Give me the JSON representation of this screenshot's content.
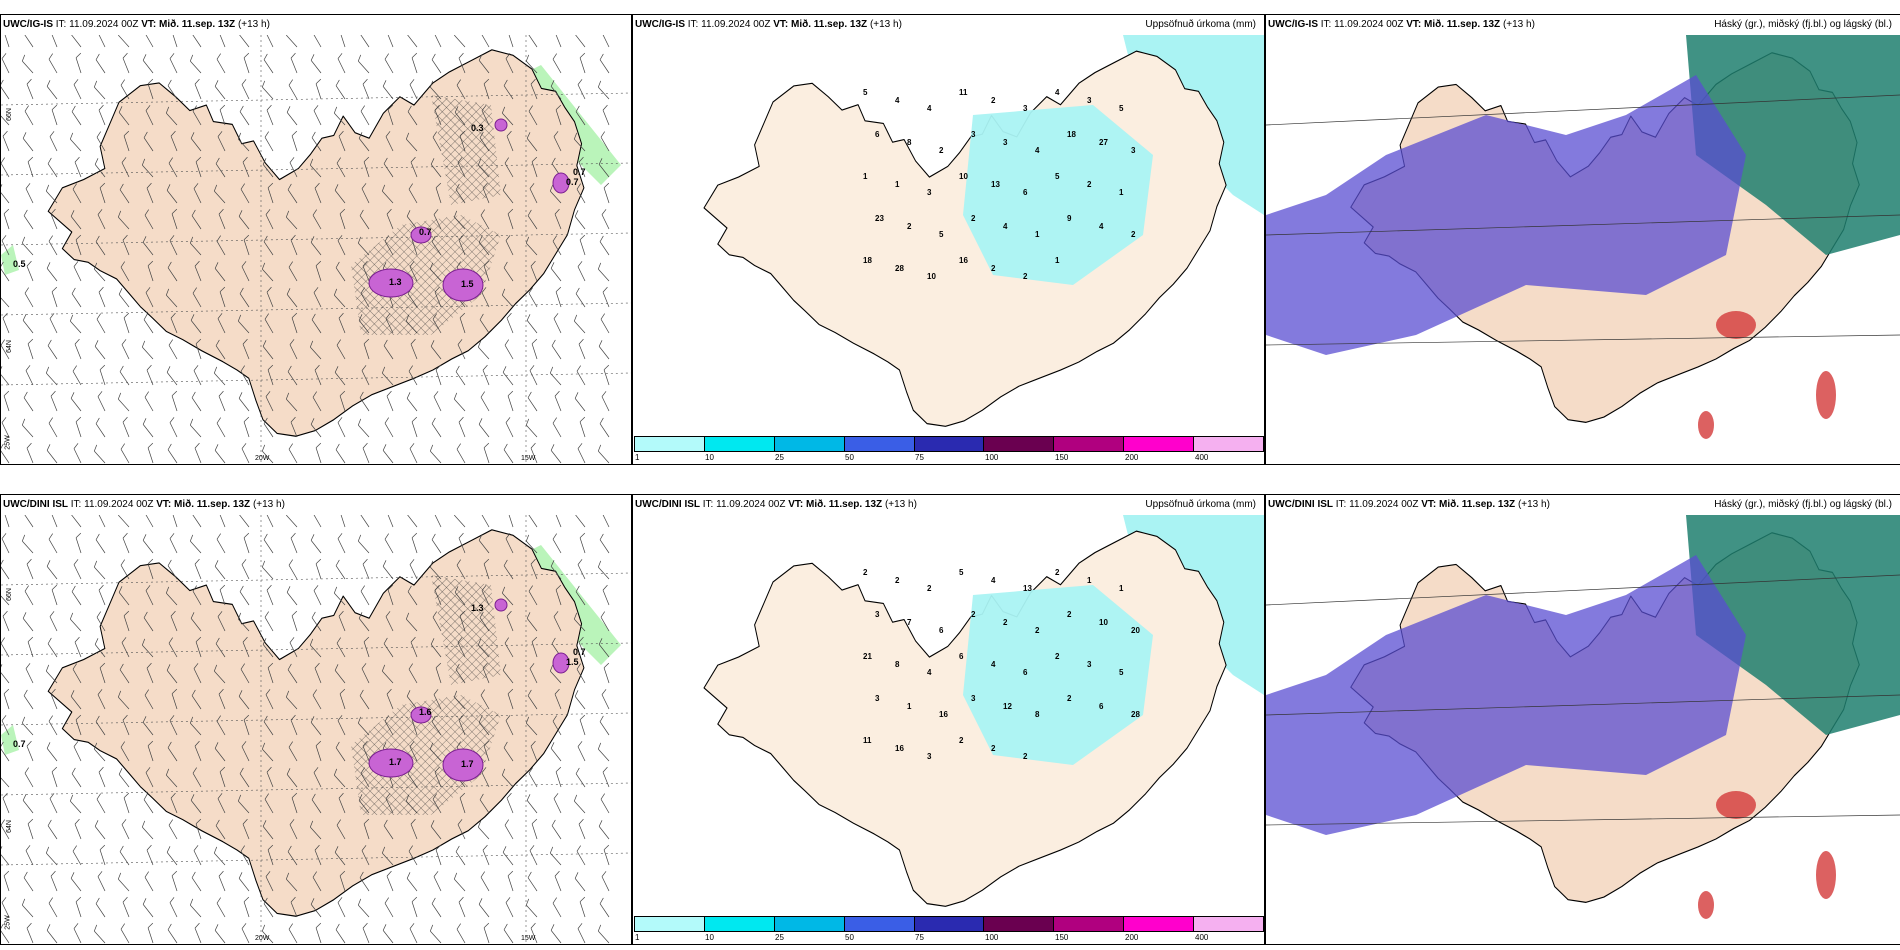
{
  "rows": [
    {
      "model": "UWC/IG-IS",
      "panels": [
        {
          "type": "wind",
          "right_title": "",
          "point_labels": [
            "0.5",
            "0.7",
            "0.3",
            "0.7",
            "1.3",
            "1.5",
            "0.7"
          ]
        },
        {
          "type": "precip",
          "right_title": "Uppsöfnuð úrkoma (mm)",
          "point_labels": [
            "5",
            "4",
            "4",
            "11",
            "2",
            "3",
            "4",
            "3",
            "5",
            "6",
            "8",
            "2",
            "3",
            "3",
            "4",
            "18",
            "27",
            "3",
            "1",
            "1",
            "3",
            "10",
            "13",
            "6",
            "5",
            "2",
            "1",
            "23",
            "2",
            "5",
            "2",
            "4",
            "1",
            "9",
            "4",
            "2",
            "18",
            "28",
            "10",
            "16",
            "2",
            "2",
            "1"
          ]
        },
        {
          "type": "cloud",
          "right_title": "Háský (gr.), miðský (fj.bl.) og lágský (bl.)"
        }
      ]
    },
    {
      "model": "UWC/DINI ISL",
      "panels": [
        {
          "type": "wind",
          "right_title": "",
          "point_labels": [
            "0.7",
            "0.7",
            "1.3",
            "1.6",
            "1.7",
            "1.7",
            "1.5"
          ]
        },
        {
          "type": "precip",
          "right_title": "Uppsöfnuð úrkoma (mm)",
          "point_labels": [
            "2",
            "2",
            "2",
            "5",
            "4",
            "13",
            "2",
            "1",
            "1",
            "3",
            "7",
            "6",
            "2",
            "2",
            "2",
            "2",
            "10",
            "20",
            "21",
            "8",
            "4",
            "6",
            "4",
            "6",
            "2",
            "3",
            "5",
            "3",
            "1",
            "16",
            "3",
            "12",
            "8",
            "2",
            "6",
            "28",
            "11",
            "16",
            "3",
            "2",
            "2",
            "2"
          ]
        },
        {
          "type": "cloud",
          "right_title": "Háský (gr.), miðský (fj.bl.) og lágský (bl.)"
        }
      ]
    }
  ],
  "header": {
    "it_label": "IT:",
    "it_value": "11.09.2024 00Z",
    "vt_label": "VT:",
    "vt_value": "Mið. 11.sep. 13Z",
    "lead": "(+13 h)"
  },
  "axis_labels": {
    "lon_20w": "20W",
    "lon_15w": "15W",
    "lon_25w": "25W",
    "lat_66n": "66N",
    "lat_64n": "64N"
  },
  "colorbar": {
    "labels": [
      "1",
      "10",
      "25",
      "50",
      "75",
      "100",
      "150",
      "200",
      "400"
    ],
    "colors": [
      "#b3fafa",
      "#00e8f0",
      "#00b8e6",
      "#3a5ee6",
      "#2a2ab0",
      "#6a0050",
      "#b0007f",
      "#ff00cc",
      "#f5b0f0"
    ]
  },
  "colors": {
    "land": "#f5dcc8",
    "land_precip": "#fbeee0",
    "wind_green": "#9cf09c",
    "precip_cyan": "#aaf3f3",
    "cloud_high": "#1f7f6f",
    "cloud_mid": "#5a4ed2",
    "cloud_low": "#d33a3a"
  }
}
